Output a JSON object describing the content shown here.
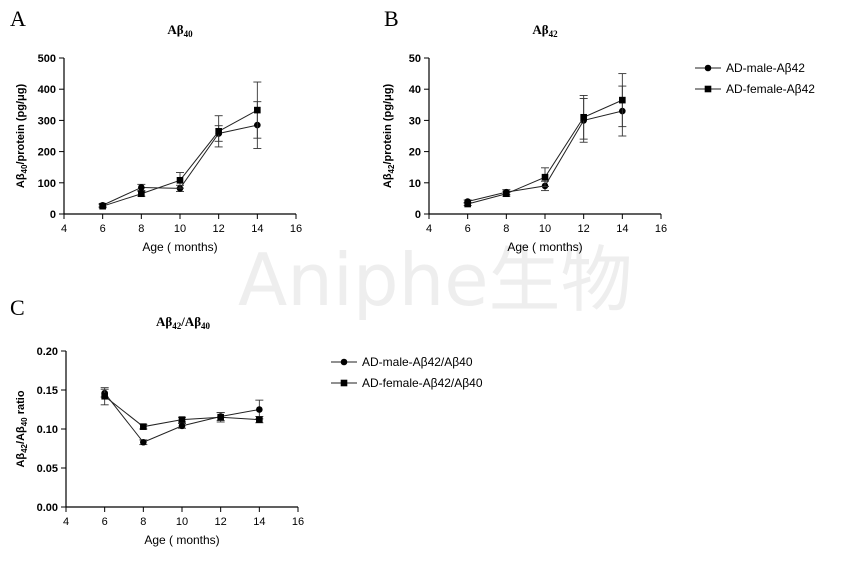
{
  "watermark": "Aniphe生物",
  "chart_data": [
    {
      "type": "line",
      "panel": "A",
      "title": "Aβ",
      "title_sub": "40",
      "ylabel_parts": [
        "Aβ",
        "40",
        "/protein (pg/μg)"
      ],
      "xlabel": "Age ( months)",
      "xlim": [
        4,
        16
      ],
      "ylim": [
        0,
        500
      ],
      "xticks": [
        4,
        6,
        8,
        10,
        12,
        14,
        16
      ],
      "yticks": [
        0,
        100,
        200,
        300,
        400,
        500
      ],
      "x": [
        6,
        8,
        10,
        12,
        14
      ],
      "series": [
        {
          "name": "",
          "marker": "circle",
          "values": [
            28,
            85,
            82,
            258,
            285
          ],
          "errors": [
            5,
            10,
            10,
            25,
            75
          ]
        },
        {
          "name": "",
          "marker": "square",
          "values": [
            25,
            65,
            108,
            265,
            333
          ],
          "errors": [
            5,
            8,
            25,
            50,
            90
          ]
        }
      ]
    },
    {
      "type": "line",
      "panel": "B",
      "title": "Aβ",
      "title_sub": "42",
      "ylabel_parts": [
        "Aβ",
        "42",
        "/protein (pg/μg)"
      ],
      "xlabel": "Age ( months)",
      "xlim": [
        4,
        16
      ],
      "ylim": [
        0,
        50
      ],
      "xticks": [
        4,
        6,
        8,
        10,
        12,
        14,
        16
      ],
      "yticks": [
        0,
        10,
        20,
        30,
        40,
        50
      ],
      "x": [
        6,
        8,
        10,
        12,
        14
      ],
      "series": [
        {
          "name": "AD-male-Aβ42",
          "marker": "circle",
          "values": [
            4,
            7,
            9,
            30,
            33
          ],
          "errors": [
            0.5,
            0.8,
            1.5,
            7,
            8
          ]
        },
        {
          "name": "AD-female-Aβ42",
          "marker": "square",
          "values": [
            3.2,
            6.5,
            11.8,
            31,
            36.5
          ],
          "errors": [
            0.5,
            0.8,
            3,
            7,
            8.5
          ]
        }
      ]
    },
    {
      "type": "line",
      "panel": "C",
      "title": "Aβ",
      "title_sub": "42",
      "title_mid": "/Aβ",
      "title_sub2": "40",
      "ylabel_parts": [
        "Aβ",
        "42",
        "/Aβ",
        "40",
        " ratio"
      ],
      "xlabel": "Age ( months)",
      "xlim": [
        4,
        16
      ],
      "ylim": [
        0,
        0.2
      ],
      "xticks": [
        4,
        6,
        8,
        10,
        12,
        14,
        16
      ],
      "yticks": [
        "0.00",
        "0.05",
        "0.10",
        "0.15",
        "0.20"
      ],
      "x": [
        6,
        8,
        10,
        12,
        14
      ],
      "series": [
        {
          "name": "AD-male-Aβ42/Aβ40",
          "marker": "circle",
          "values": [
            0.146,
            0.083,
            0.104,
            0.116,
            0.125
          ],
          "errors": [
            0.005,
            0.003,
            0.003,
            0.005,
            0.012
          ]
        },
        {
          "name": "AD-female-Aβ42/Aβ40",
          "marker": "square",
          "values": [
            0.142,
            0.103,
            0.112,
            0.115,
            0.112
          ],
          "errors": [
            0.011,
            0.003,
            0.003,
            0.006,
            0.004
          ]
        }
      ]
    }
  ]
}
